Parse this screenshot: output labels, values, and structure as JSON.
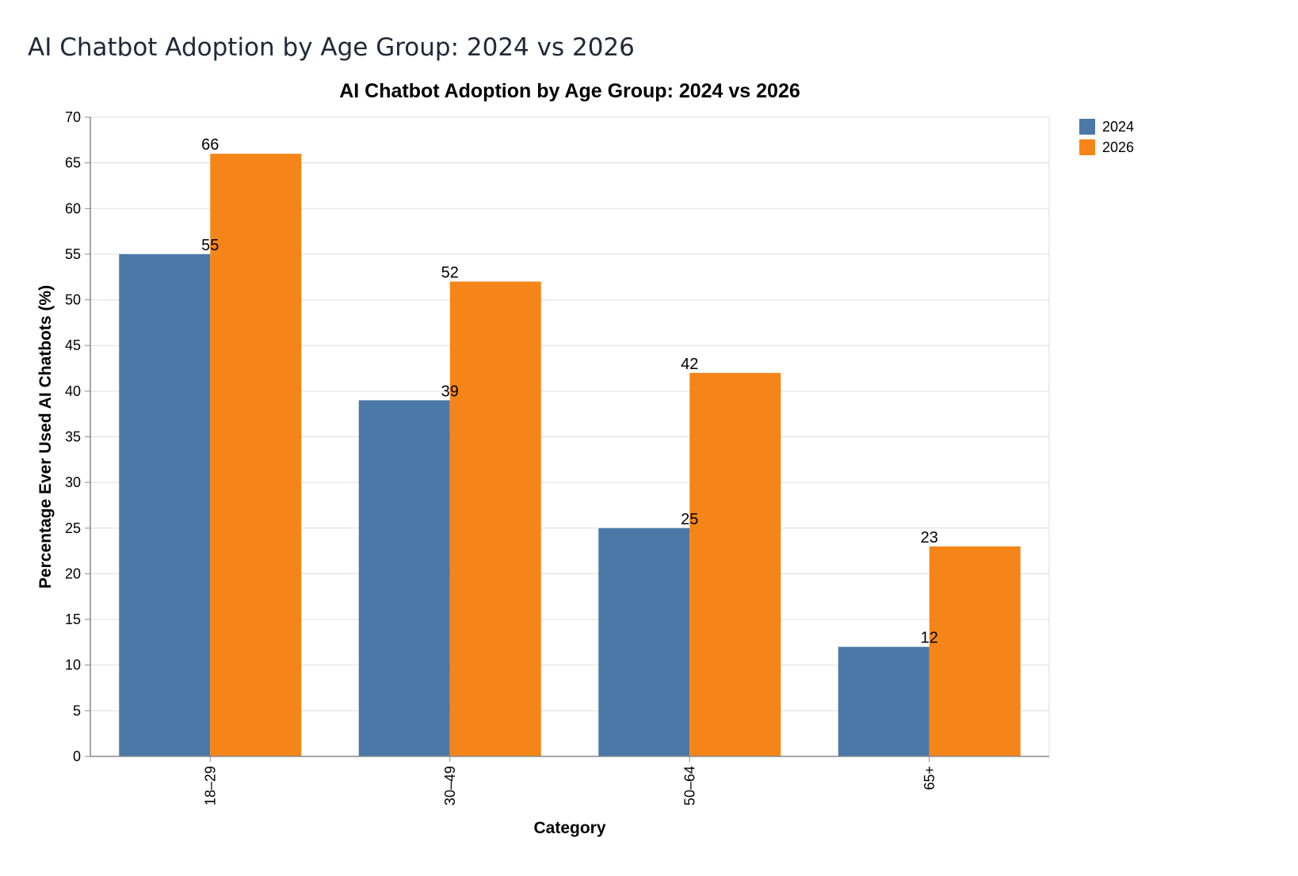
{
  "page": {
    "title": "AI Chatbot Adoption by Age Group: 2024 vs 2026"
  },
  "chart_data": {
    "type": "bar",
    "title": "AI Chatbot Adoption by Age Group: 2024 vs 2026",
    "xlabel": "Category",
    "ylabel": "Percentage Ever Used AI Chatbots (%)",
    "categories": [
      "18–29",
      "30–49",
      "50–64",
      "65+"
    ],
    "series": [
      {
        "name": "2024",
        "color": "#4c78a8",
        "values": [
          55,
          39,
          25,
          12
        ]
      },
      {
        "name": "2026",
        "color": "#f58518",
        "values": [
          66,
          52,
          42,
          23
        ]
      }
    ],
    "ylim": [
      0,
      70
    ],
    "yticks": [
      0,
      5,
      10,
      15,
      20,
      25,
      30,
      35,
      40,
      45,
      50,
      55,
      60,
      65,
      70
    ],
    "grid": true,
    "legend_position": "top-right",
    "data_labels": true
  }
}
